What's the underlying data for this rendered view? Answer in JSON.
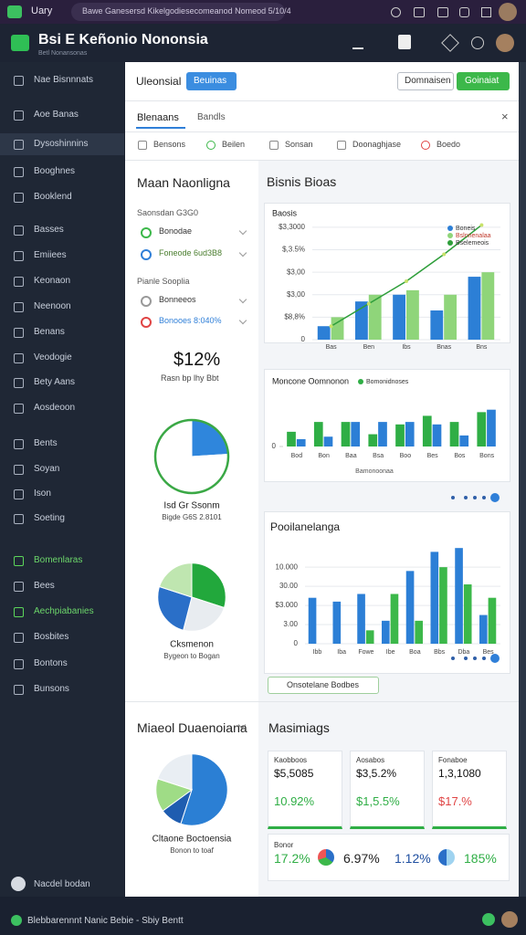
{
  "browser": {
    "tab": "Uary",
    "url": "Bawe Ganesersd Kikelgodiesecomeanod Nomeod 5/10/4"
  },
  "header": {
    "title": "Bsi E Keñonio Nononsia",
    "subtitle": "Betl Nonansonas"
  },
  "sidebar": {
    "items": [
      "Nae Bisnnnats",
      "Aoe Banas",
      "Dysoshinnins",
      "Booghnes",
      "Booklend",
      "Basses",
      "Emiiees",
      "Keonaon",
      "Neenoon",
      "Benans",
      "Veodogie",
      "Bety Aans",
      "Aosdeoon",
      "Bents",
      "Soyan",
      "Ison",
      "Soeting",
      "Bomenlaras",
      "Bees",
      "Aechpiabanies",
      "Bosbites",
      "Bontons",
      "Bunsons"
    ],
    "footer": "Nacdel bodan"
  },
  "toolbar": {
    "label": "Uleonsial",
    "primary": "Beuinas",
    "secondary": "Domnaisen",
    "action": "Goinaiat"
  },
  "tabs": [
    "Blenaans",
    "Bandls"
  ],
  "filters": [
    "Bensons",
    "Beilen",
    "Sonsan",
    "Doonaghjase",
    "Boedo"
  ],
  "left_panel": {
    "title": "Maan Naonligna",
    "group1_label": "Saonsdan G3G0",
    "options": [
      "Bonodae",
      "Foneode 6ud3B8",
      "Bonneeos",
      "Bonooes 8:040%"
    ],
    "group2_label": "Pianle Sooplia",
    "stat": "$12%",
    "stat_caption": "Rasn bp lhy Bbt",
    "section2_title": "Miaeol Duaenoiana"
  },
  "right_panel": {
    "title": "Bisnis Bioas",
    "button": "Onsotelane Bodbes",
    "metrics_title": "Masimiags",
    "metrics": [
      {
        "label": "Kaobboos",
        "value": "$5,5085",
        "change": "10.92%"
      },
      {
        "label": "Aosabos",
        "value": "$3,5.2%",
        "change": "$1,5.5%"
      },
      {
        "label": "Fonaboe",
        "value": "1,3,1080",
        "change": "$17.%"
      }
    ],
    "summary": {
      "label": "Bonor",
      "values": [
        "17.2%",
        "6.97%",
        "1.12%",
        "185%"
      ]
    }
  },
  "footer": {
    "text": "Blebbarennnt Nanic Bebie - Sbiy Bentt"
  },
  "chart_data": [
    {
      "type": "bar",
      "title": "Baosis",
      "categories": [
        "Bas",
        "Ben",
        "Ibs",
        "Bnas",
        "Bns"
      ],
      "ylim": [
        0,
        5.2
      ],
      "yticks": [
        0,
        {
          "value": 1,
          "label": "$8,8%"
        },
        {
          "value": 2,
          "label": "$3,00"
        },
        {
          "value": 3,
          "label": "$3,00"
        },
        {
          "value": 4,
          "label": "$,3.5%"
        },
        {
          "value": 5,
          "label": "$3,3000"
        }
      ],
      "grid": true,
      "series": [
        {
          "name": "Boneis",
          "color": "#2c7fd6",
          "values": [
            0.6,
            1.7,
            2.0,
            1.3,
            2.8
          ]
        },
        {
          "name": "Bslnnenalaa",
          "color": "#8fd57a",
          "values": [
            1.0,
            2.0,
            2.2,
            2.0,
            3.0
          ]
        },
        {
          "name": "Bselemeois",
          "type": "line",
          "color": "#2e9e3a",
          "values": [
            0.6,
            1.6,
            2.6,
            3.8,
            5.1
          ]
        }
      ]
    },
    {
      "type": "bar",
      "title": "Moncone Oomnonon",
      "subtitle": "Bamonoonaa",
      "categories": [
        "Bod",
        "Bon",
        "Baa",
        "Bsa",
        "Boo",
        "Bes",
        "Bos",
        "Bons"
      ],
      "ylim": [
        0,
        3.2
      ],
      "yticks": [
        0
      ],
      "grid": false,
      "series": [
        {
          "name": "Bomonidnoses",
          "color": "#2fae45",
          "values": [
            1.2,
            2.0,
            2.0,
            1.0,
            1.8,
            2.5,
            2.0,
            2.8
          ]
        },
        {
          "color": "#2c7fd6",
          "values": [
            0.6,
            0.8,
            2.0,
            2.0,
            2.0,
            1.8,
            0.9,
            3.0
          ]
        }
      ]
    },
    {
      "type": "bar",
      "title": "Pooilanelanga",
      "categories": [
        "Ibb",
        "Iba",
        "Fowe",
        "Ibe",
        "Boa",
        "Bbs",
        "Dba",
        "Bes"
      ],
      "ylim": [
        0,
        5.2
      ],
      "yticks": [
        0,
        {
          "value": 1,
          "label": "3.00"
        },
        {
          "value": 2,
          "label": "$3.000"
        },
        {
          "value": 3,
          "label": "30.00"
        },
        {
          "value": 4,
          "label": "10.000"
        }
      ],
      "grid": true,
      "series": [
        {
          "color": "#2c7fd6",
          "values": [
            2.4,
            2.2,
            2.6,
            1.2,
            3.8,
            4.8,
            5.0,
            1.5
          ]
        },
        {
          "color": "#3cb84a",
          "values": [
            0,
            0,
            0.7,
            2.6,
            1.2,
            4.0,
            3.1,
            2.4
          ]
        }
      ]
    },
    {
      "type": "pie",
      "title": "Isd Gr Ssonm",
      "subtitle": "Bigde G6S 2.8101",
      "values": [
        24,
        76
      ],
      "colors": [
        "#2f86dc",
        "#ffffff"
      ],
      "outline": "#3aa845"
    },
    {
      "type": "pie",
      "title": "Cksmenon",
      "subtitle": "Bygeon to Bogan",
      "values": [
        30,
        24,
        26,
        20
      ],
      "colors": [
        "#22a83c",
        "#e8ecf0",
        "#2a6fc8",
        "#bfe6b0"
      ],
      "outline": "#ffffff"
    },
    {
      "type": "pie",
      "title": "Cltaone Boctoensia",
      "subtitle": "Bonon to toaf",
      "values": [
        55,
        10,
        15,
        20
      ],
      "colors": [
        "#2b7fd4",
        "#1f5db0",
        "#9fdc86",
        "#e9eef3"
      ],
      "outline": "#ffffff"
    }
  ]
}
